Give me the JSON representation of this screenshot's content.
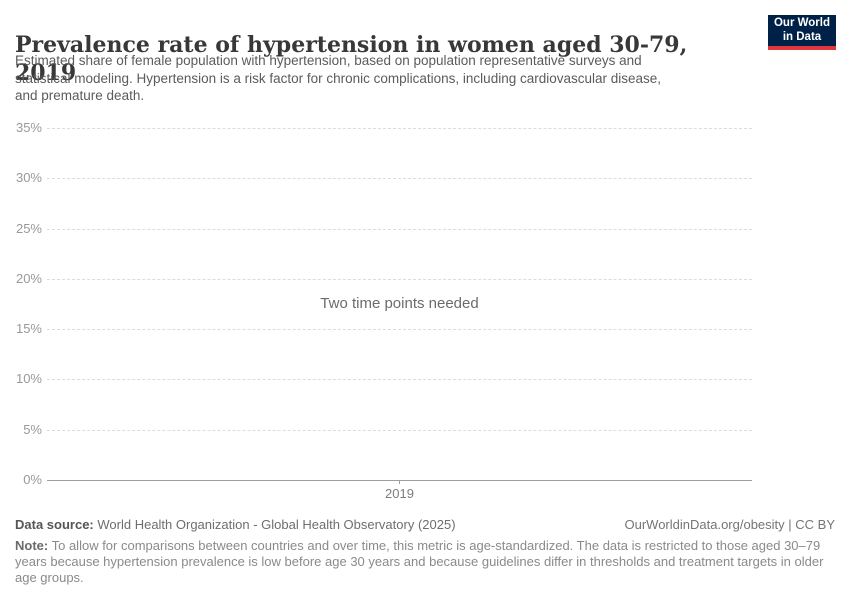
{
  "header": {
    "title": "Prevalence rate of hypertension in women aged 30-79, 2019",
    "subtitle_lines": [
      "Estimated share of female population with hypertension, based on population representative surveys and",
      "statistical modeling. Hypertension is a risk factor for chronic complications, including cardiovascular disease,",
      "and premature death."
    ],
    "logo": {
      "line1": "Our World",
      "line2": "in Data"
    }
  },
  "colors": {
    "logo_background": "#002147",
    "logo_accent_red": "#e0373c",
    "gridline": "#dcdcdc",
    "axis_line": "#9e9e9e",
    "tick_label": "#999999"
  },
  "chart": {
    "empty_message": "Two time points needed",
    "y_ticks": [
      "35%",
      "30%",
      "25%",
      "20%",
      "15%",
      "10%",
      "5%",
      "0%"
    ],
    "x_ticks": [
      "2019"
    ]
  },
  "chart_data": {
    "type": "line",
    "title": "Prevalence rate of hypertension in women aged 30-79, 2019",
    "x": [
      "2019"
    ],
    "series": [],
    "empty_state_message": "Two time points needed",
    "xlabel": "",
    "ylabel": "",
    "y_unit": "%",
    "ylim": [
      0,
      35
    ],
    "y_tick_values": [
      0,
      5,
      10,
      15,
      20,
      25,
      30,
      35
    ],
    "grid": "horizontal-dashed",
    "legend": "none"
  },
  "footer": {
    "data_source_label": "Data source:",
    "data_source": "World Health Organization - Global Health Observatory (2025)",
    "attribution": "OurWorldinData.org/obesity | CC BY",
    "note_label": "Note:",
    "note_lines": [
      "To allow for comparisons between countries and over time, this metric is age-standardized. The data is restricted to those aged 30–79",
      "years because hypertension prevalence is low before age 30 years and because guidelines differ in thresholds and treatment targets in older",
      "age groups."
    ]
  }
}
